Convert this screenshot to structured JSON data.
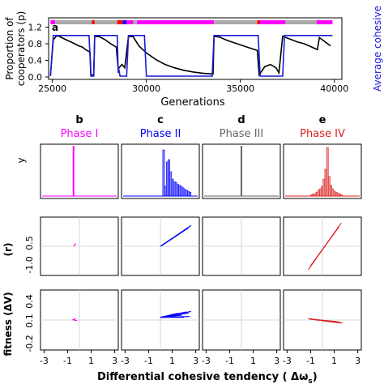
{
  "chart_data": [
    {
      "panel": "a",
      "type": "line",
      "xlabel": "Generations",
      "ylabel_left": [
        "Proportion of",
        "cooperators (p)"
      ],
      "ylabel_right": "Average cohesive",
      "x_ticks": [
        "25000",
        "30000",
        "35000",
        "40000"
      ],
      "y_ticks": [
        "0.0",
        "0.4",
        "0.8",
        "1.2"
      ],
      "xlim": [
        25000,
        40000
      ],
      "ylim": [
        0,
        1.25
      ],
      "phase_bar_colors": {
        "I": "#ff00ff",
        "II": "#0000ff",
        "III": "#aaaaaa",
        "IV": "#ff0000"
      },
      "phase_bar": [
        {
          "from": 24900,
          "to": 25150,
          "phase": "I"
        },
        {
          "from": 25150,
          "to": 27100,
          "phase": "III"
        },
        {
          "from": 27100,
          "to": 27250,
          "phase": "IV"
        },
        {
          "from": 27250,
          "to": 28450,
          "phase": "III"
        },
        {
          "from": 28450,
          "to": 28750,
          "phase": "IV"
        },
        {
          "from": 28750,
          "to": 28950,
          "phase": "II"
        },
        {
          "from": 28950,
          "to": 29300,
          "phase": "I"
        },
        {
          "from": 29300,
          "to": 29500,
          "phase": "III"
        },
        {
          "from": 29500,
          "to": 33600,
          "phase": "I"
        },
        {
          "from": 33600,
          "to": 35900,
          "phase": "III"
        },
        {
          "from": 35900,
          "to": 36050,
          "phase": "IV"
        },
        {
          "from": 36050,
          "to": 37400,
          "phase": "I"
        },
        {
          "from": 37400,
          "to": 39050,
          "phase": "III"
        },
        {
          "from": 39050,
          "to": 39900,
          "phase": "I"
        }
      ],
      "series": [
        {
          "color": "#000000",
          "points": [
            [
              24900,
              0.05
            ],
            [
              25050,
              0.9
            ],
            [
              25250,
              1.0
            ],
            [
              25500,
              0.95
            ],
            [
              25800,
              0.88
            ],
            [
              26100,
              0.82
            ],
            [
              26400,
              0.75
            ],
            [
              26600,
              0.72
            ],
            [
              26800,
              0.65
            ],
            [
              27000,
              0.6
            ],
            [
              27050,
              0.05
            ],
            [
              27200,
              0.05
            ],
            [
              27250,
              0.98
            ],
            [
              27500,
              0.97
            ],
            [
              27800,
              0.9
            ],
            [
              28100,
              0.8
            ],
            [
              28400,
              0.72
            ],
            [
              28500,
              0.2
            ],
            [
              28700,
              0.3
            ],
            [
              28850,
              0.22
            ],
            [
              29050,
              0.98
            ],
            [
              29300,
              0.97
            ],
            [
              29600,
              0.75
            ],
            [
              30000,
              0.58
            ],
            [
              30500,
              0.42
            ],
            [
              31000,
              0.3
            ],
            [
              31500,
              0.22
            ],
            [
              32000,
              0.16
            ],
            [
              32500,
              0.12
            ],
            [
              33000,
              0.09
            ],
            [
              33550,
              0.07
            ],
            [
              33600,
              0.98
            ],
            [
              33900,
              0.96
            ],
            [
              34300,
              0.88
            ],
            [
              34700,
              0.82
            ],
            [
              35100,
              0.76
            ],
            [
              35500,
              0.7
            ],
            [
              35900,
              0.64
            ],
            [
              36000,
              0.05
            ],
            [
              36300,
              0.25
            ],
            [
              36600,
              0.3
            ],
            [
              36900,
              0.22
            ],
            [
              37050,
              0.1
            ],
            [
              37250,
              0.98
            ],
            [
              37600,
              0.92
            ],
            [
              38000,
              0.85
            ],
            [
              38400,
              0.8
            ],
            [
              38800,
              0.72
            ],
            [
              39100,
              0.66
            ],
            [
              39200,
              0.95
            ],
            [
              39500,
              0.85
            ],
            [
              39800,
              0.75
            ]
          ]
        },
        {
          "color": "#0000cc",
          "points": [
            [
              24900,
              0.02
            ],
            [
              25050,
              1.0
            ],
            [
              26950,
              1.0
            ],
            [
              27050,
              0.02
            ],
            [
              27200,
              0.02
            ],
            [
              27250,
              1.0
            ],
            [
              28450,
              1.0
            ],
            [
              28500,
              0.1
            ],
            [
              28550,
              0.15
            ],
            [
              28600,
              0.02
            ],
            [
              28950,
              0.02
            ],
            [
              29050,
              1.0
            ],
            [
              29900,
              1.0
            ],
            [
              30000,
              0.02
            ],
            [
              33500,
              0.02
            ],
            [
              33600,
              1.0
            ],
            [
              35950,
              1.0
            ],
            [
              36050,
              0.02
            ],
            [
              37250,
              0.02
            ],
            [
              37350,
              1.0
            ],
            [
              39900,
              1.0
            ]
          ]
        }
      ]
    },
    {
      "panel": "b",
      "title": "Phase I",
      "color": "#ff00ff",
      "type": "table",
      "rows": [
        {
          "kind": "spike",
          "x": -0.5
        },
        {
          "kind": "segments",
          "lines": [
            [
              -0.5,
              0.0,
              -0.3,
              0.1
            ]
          ]
        },
        {
          "kind": "segments",
          "lines": [
            [
              -0.6,
              0.0,
              -0.3,
              0.05
            ],
            [
              -0.5,
              0.0,
              -0.2,
              -0.02
            ]
          ]
        }
      ]
    },
    {
      "panel": "c",
      "title": "Phase II",
      "color": "#0000ff",
      "type": "table",
      "rows": [
        {
          "kind": "histogram",
          "bins": [
            0.2,
            0.35,
            0.5,
            0.65,
            0.8,
            0.95,
            1.1,
            1.25,
            1.4,
            1.55,
            1.7,
            1.85,
            2.0,
            2.15,
            2.3,
            2.45
          ],
          "heights": [
            0.95,
            0.2,
            0.7,
            0.75,
            0.5,
            0.35,
            0.3,
            0.28,
            0.24,
            0.22,
            0.2,
            0.17,
            0.14,
            0.12,
            0.1,
            0.08
          ]
        },
        {
          "kind": "segments",
          "lines": [
            [
              0,
              0,
              2.6,
              0.8
            ],
            [
              0.1,
              0.02,
              2.4,
              0.72
            ]
          ]
        },
        {
          "kind": "segments",
          "lines": [
            [
              0,
              0.1,
              2.6,
              0.32
            ],
            [
              0,
              0.1,
              2.2,
              0.3
            ],
            [
              0,
              0.1,
              1.5,
              0.25
            ],
            [
              0,
              0.1,
              2.4,
              0.26
            ],
            [
              0,
              0.1,
              1.8,
              0.18
            ],
            [
              0,
              0.1,
              2.5,
              0.13
            ],
            [
              0,
              0.1,
              2.0,
              0.1
            ],
            [
              0,
              0.1,
              1.2,
              0.15
            ]
          ]
        }
      ]
    },
    {
      "panel": "d",
      "title": "Phase III",
      "color": "#666666",
      "type": "table",
      "rows": [
        {
          "kind": "spike",
          "x": 0
        },
        {
          "kind": "segments",
          "lines": []
        },
        {
          "kind": "segments",
          "lines": []
        }
      ]
    },
    {
      "panel": "e",
      "title": "Phase IV",
      "color": "#dd2222",
      "type": "table",
      "rows": [
        {
          "kind": "histogram",
          "bins": [
            -1.0,
            -0.85,
            -0.7,
            -0.55,
            -0.4,
            -0.25,
            -0.1,
            0.05,
            0.2,
            0.35,
            0.5,
            0.65,
            0.8,
            0.95,
            1.1,
            1.25,
            1.4,
            1.55
          ],
          "heights": [
            0.03,
            0.04,
            0.05,
            0.08,
            0.12,
            0.15,
            0.2,
            0.35,
            0.55,
            1.0,
            0.4,
            0.22,
            0.15,
            0.1,
            0.08,
            0.06,
            0.04,
            0.03
          ]
        },
        {
          "kind": "segments",
          "lines": [
            [
              -1.2,
              -0.9,
              1.6,
              0.9
            ],
            [
              -1.0,
              -0.75,
              1.4,
              0.75
            ]
          ]
        },
        {
          "kind": "segments",
          "lines": [
            [
              -1.2,
              0.05,
              1.7,
              -0.12
            ],
            [
              -1.0,
              0.03,
              1.3,
              -0.1
            ],
            [
              -0.8,
              0.02,
              1.5,
              -0.08
            ],
            [
              -1.1,
              0.04,
              1.2,
              -0.06
            ]
          ]
        }
      ]
    }
  ],
  "row_labels": [
    "y",
    "(r)",
    "fitness (ΔV)"
  ],
  "row_ticks": [
    [
      "0.5",
      "-1.0"
    ],
    [
      "0.4",
      "0.1",
      "-0.2"
    ]
  ],
  "x_axis": {
    "ticks": [
      "-3",
      "-1",
      "1",
      "3"
    ],
    "xlabel": "Differential cohesive tendency (  Δω",
    "xlabel_sub": "s",
    "xlabel_close": ")"
  }
}
